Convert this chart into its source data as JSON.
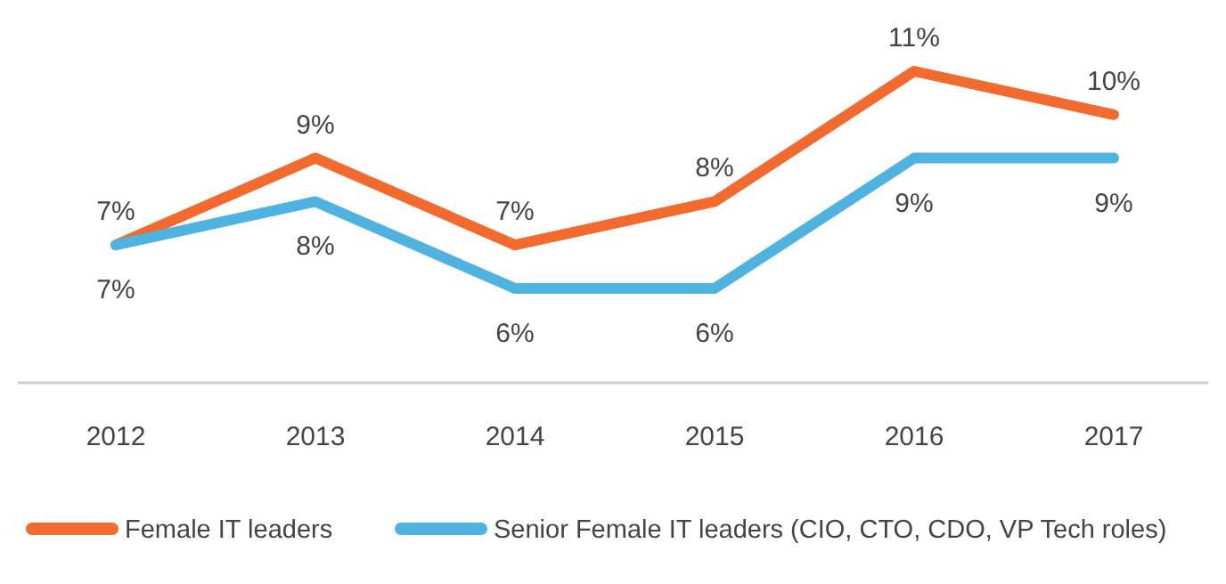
{
  "chart_data": {
    "type": "line",
    "categories": [
      "2012",
      "2013",
      "2014",
      "2015",
      "2016",
      "2017"
    ],
    "series": [
      {
        "name": "Female IT leaders",
        "color": "#f26a2e",
        "values": [
          7,
          9,
          7,
          8,
          11,
          10
        ],
        "value_labels": [
          "7%",
          "9%",
          "7%",
          "8%",
          "11%",
          "10%"
        ]
      },
      {
        "name": "Senior Female IT leaders (CIO, CTO, CDO, VP Tech roles)",
        "color": "#4fb3e0",
        "values": [
          7,
          8,
          6,
          6,
          9,
          9
        ],
        "value_labels": [
          "7%",
          "8%",
          "6%",
          "6%",
          "9%",
          "9%"
        ]
      }
    ],
    "legend": "bottom",
    "marker": "none",
    "line_style": "solid"
  }
}
